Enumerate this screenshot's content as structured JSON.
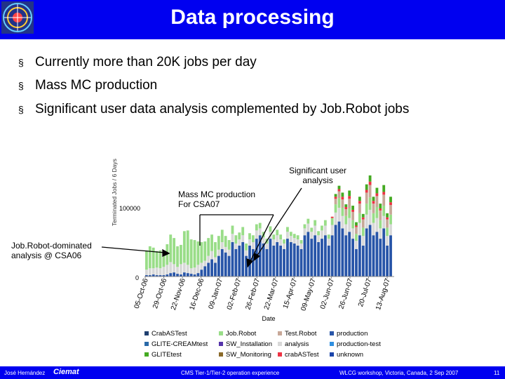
{
  "slide": {
    "title": "Data processing",
    "bullets": [
      "Currently more than 20K jobs per day",
      "Mass MC production",
      "Significant user data analysis complemented by Job.Robot jobs"
    ],
    "bullet_mark": "§"
  },
  "annotations": {
    "user_analysis": [
      "Significant user",
      "analysis"
    ],
    "mass_mc": [
      "Mass MC production",
      "For CSA07"
    ],
    "jobrobot": [
      "Job.Robot-dominated",
      "analysis @ CSA06"
    ]
  },
  "footer": {
    "author": "José Hernández",
    "logo_text": "Ciemat",
    "talk": "CMS Tier-1/Tier-2 operation experience",
    "event": "WLCG workshop, Victoria, Canada, 2 Sep 2007",
    "page": "11"
  },
  "chart_data": {
    "type": "bar",
    "stacked": true,
    "ylabel": "Terminated Jobs / 6 Days",
    "xlabel": "Date",
    "y_ticks": [
      "0",
      "100000"
    ],
    "ylim": [
      0,
      160000
    ],
    "x_tick_labels": [
      "05-Oct-06",
      "29-Oct-06",
      "22-Nov-06",
      "16-Dec-06",
      "09-Jan-07",
      "02-Feb-07",
      "26-Feb-07",
      "22-Mar-07",
      "15-Apr-07",
      "09-May-07",
      "02-Jun-07",
      "26-Jun-07",
      "20-Jul-07",
      "13-Aug-07"
    ],
    "legend": [
      {
        "name": "CrabASTest",
        "color": "#1f3f6f"
      },
      {
        "name": "Job.Robot",
        "color": "#99dd88"
      },
      {
        "name": "Test.Robot",
        "color": "#c8a898"
      },
      {
        "name": "production",
        "color": "#2855a8"
      },
      {
        "name": "GLITE-CREAMtest",
        "color": "#2a6aa8"
      },
      {
        "name": "SW_Installation",
        "color": "#5533aa"
      },
      {
        "name": "analysis",
        "color": "#d8d8d8"
      },
      {
        "name": "production-test",
        "color": "#2f8fe0"
      },
      {
        "name": "GLITEtest",
        "color": "#44aa22"
      },
      {
        "name": "SW_Monitoring",
        "color": "#8a6a2a"
      },
      {
        "name": "crabASTest",
        "color": "#ee3344"
      },
      {
        "name": "unknown",
        "color": "#1a44aa"
      }
    ],
    "series": [
      {
        "name": "production",
        "color": "#2855a8",
        "values": [
          2000,
          2000,
          3000,
          2000,
          2000,
          2000,
          3000,
          5000,
          6000,
          4000,
          3000,
          6000,
          5000,
          4000,
          3000,
          5000,
          10000,
          15000,
          20000,
          25000,
          20000,
          30000,
          40000,
          35000,
          30000,
          50000,
          40000,
          45000,
          50000,
          30000,
          45000,
          40000,
          55000,
          60000,
          48000,
          40000,
          55000,
          45000,
          50000,
          45000,
          40000,
          55000,
          50000,
          48000,
          45000,
          40000,
          60000,
          65000,
          55000,
          60000,
          50000,
          55000,
          60000,
          45000,
          60000,
          75000,
          80000,
          70000,
          60000,
          65000,
          55000,
          40000,
          60000,
          45000,
          70000,
          75000,
          60000,
          65000,
          55000,
          70000,
          45000,
          60000
        ]
      },
      {
        "name": "analysis",
        "color": "#d8d8d8",
        "values": [
          8000,
          10000,
          9000,
          11000,
          10000,
          12000,
          14000,
          16000,
          12000,
          10000,
          15000,
          14000,
          12000,
          8000,
          10000,
          12000,
          10000,
          8000,
          10000,
          12000,
          8000,
          9000,
          10000,
          8000,
          9000,
          12000,
          8000,
          9000,
          10000,
          8000,
          9000,
          10000,
          12000,
          10000,
          9000,
          8000,
          10000,
          9000,
          10000,
          9000,
          8000,
          10000,
          9000,
          8000,
          9000,
          8000,
          10000,
          12000,
          10000,
          14000,
          10000,
          12000,
          14000,
          10000,
          15000,
          18000,
          20000,
          18000,
          16000,
          20000,
          15000,
          12000,
          18000,
          14000,
          20000,
          22000,
          18000,
          20000,
          15000,
          18000,
          14000,
          16000
        ]
      },
      {
        "name": "Job.Robot",
        "color": "#99dd88",
        "values": [
          28000,
          32000,
          30000,
          24000,
          26000,
          22000,
          30000,
          40000,
          38000,
          30000,
          28000,
          46000,
          50000,
          42000,
          40000,
          34000,
          30000,
          28000,
          26000,
          24000,
          22000,
          20000,
          18000,
          16000,
          14000,
          12000,
          12000,
          10000,
          12000,
          10000,
          9000,
          10000,
          9000,
          8000,
          8000,
          7000,
          8000,
          7000,
          8000,
          7000,
          6000,
          7000,
          6000,
          6000,
          6000,
          5000,
          6000,
          7000,
          6000,
          8000,
          6000,
          7000,
          8000,
          6000,
          10000,
          12000,
          14000,
          12000,
          12000,
          14000,
          12000,
          10000,
          14000,
          12000,
          16000,
          18000,
          14000,
          16000,
          12000,
          15000,
          12000,
          14000
        ]
      },
      {
        "name": "Test.Robot",
        "color": "#c8a898",
        "values": [
          0,
          0,
          0,
          0,
          0,
          0,
          0,
          0,
          0,
          0,
          0,
          0,
          0,
          0,
          0,
          0,
          0,
          0,
          0,
          0,
          0,
          0,
          0,
          0,
          0,
          0,
          0,
          0,
          0,
          0,
          0,
          0,
          0,
          0,
          0,
          0,
          0,
          0,
          0,
          0,
          0,
          0,
          0,
          0,
          0,
          0,
          0,
          0,
          0,
          0,
          0,
          0,
          0,
          0,
          0,
          8000,
          10000,
          12000,
          10000,
          14000,
          12000,
          10000,
          14000,
          12000,
          16000,
          18000,
          14000,
          16000,
          14000,
          16000,
          12000,
          14000
        ]
      },
      {
        "name": "crabASTest",
        "color": "#ee3344",
        "values": [
          0,
          0,
          0,
          0,
          0,
          0,
          0,
          0,
          0,
          0,
          0,
          0,
          0,
          0,
          0,
          0,
          0,
          0,
          0,
          0,
          0,
          0,
          0,
          0,
          0,
          0,
          0,
          0,
          0,
          0,
          0,
          0,
          0,
          0,
          0,
          0,
          0,
          0,
          0,
          0,
          0,
          0,
          0,
          0,
          0,
          0,
          0,
          0,
          0,
          0,
          0,
          0,
          0,
          0,
          2000,
          3000,
          3000,
          4000,
          3000,
          4000,
          3000,
          2000,
          4000,
          3000,
          4000,
          5000,
          4000,
          4000,
          3000,
          4000,
          3000,
          4000
        ]
      },
      {
        "name": "GLITEtest",
        "color": "#44aa22",
        "values": [
          0,
          0,
          0,
          0,
          0,
          0,
          0,
          0,
          0,
          0,
          0,
          0,
          0,
          0,
          0,
          0,
          0,
          0,
          0,
          0,
          0,
          0,
          0,
          0,
          0,
          0,
          0,
          0,
          0,
          0,
          0,
          0,
          0,
          0,
          0,
          0,
          0,
          0,
          0,
          0,
          0,
          0,
          0,
          0,
          0,
          0,
          0,
          0,
          0,
          0,
          0,
          0,
          0,
          0,
          0,
          4000,
          5000,
          6000,
          4000,
          8000,
          6000,
          5000,
          6000,
          5000,
          8000,
          9000,
          6000,
          8000,
          7000,
          10000,
          6000,
          8000
        ]
      }
    ]
  }
}
